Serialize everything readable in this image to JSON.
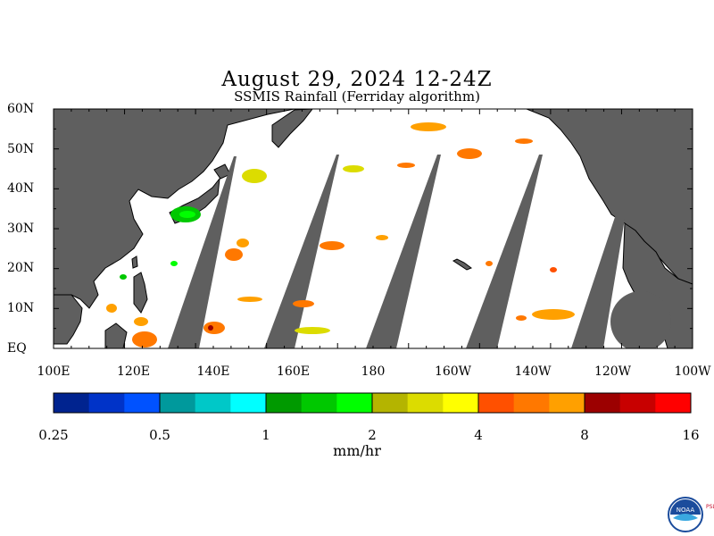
{
  "title": "August 29, 2024 12-24Z",
  "subtitle": "SSMIS Rainfall (Ferriday algorithm)",
  "lat_labels": [
    "60N",
    "50N",
    "40N",
    "30N",
    "20N",
    "10N",
    "EQ"
  ],
  "lon_labels": [
    "100E",
    "120E",
    "140E",
    "160E",
    "180",
    "160W",
    "140W",
    "120W",
    "100W"
  ],
  "colorbar": {
    "labels": [
      "0.25",
      "0.5",
      "1",
      "2",
      "4",
      "8",
      "16"
    ],
    "units": "mm/hr",
    "colors": [
      "#00238f",
      "#0033c8",
      "#0052ff",
      "#00999c",
      "#00c8c8",
      "#00ffff",
      "#009a00",
      "#00c800",
      "#00ff00",
      "#b4b400",
      "#dcdc00",
      "#ffff00",
      "#ff5000",
      "#ff7800",
      "#ffa000",
      "#9c0000",
      "#c80000",
      "#ff0000"
    ]
  },
  "colors": {
    "land": "#5f5f5f",
    "swath_gap": "#5f5f5f",
    "background": "#ffffff"
  },
  "logo": {
    "text": "NOAA",
    "side_text": "PSL"
  }
}
